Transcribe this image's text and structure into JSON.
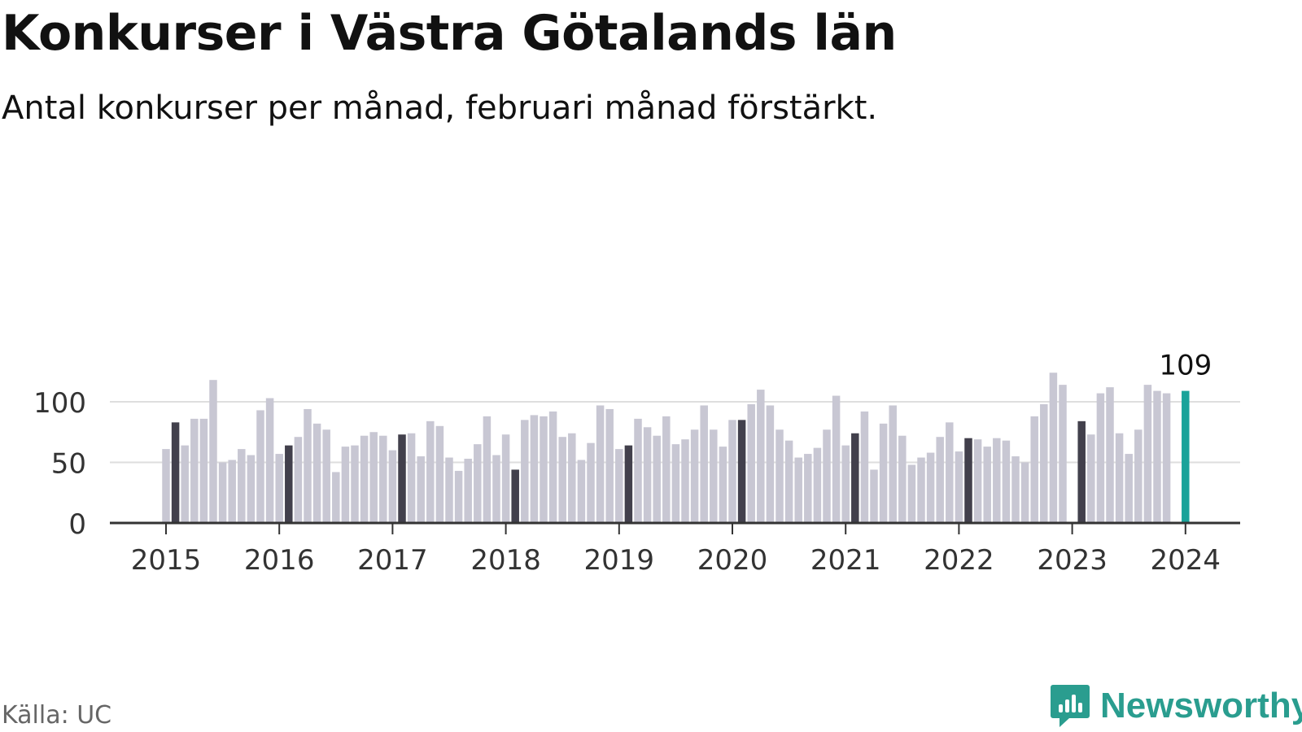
{
  "title": "Konkurser i Västra Götalands län",
  "subtitle": "Antal konkurser per månad, februari månad förstärkt.",
  "source": "Källa: UC",
  "brand": {
    "name": "Newsworthy",
    "icon": "newsworthy-logo-icon"
  },
  "colors": {
    "bar": "#c8c7d3",
    "highlight": "#42404c",
    "latest": "#1aa39a",
    "grid": "#dedede",
    "axis": "#333333"
  },
  "chart_data": {
    "type": "bar",
    "xlabel": "",
    "ylabel": "",
    "ylim": [
      0,
      125
    ],
    "yticks": [
      0,
      50,
      100
    ],
    "grid": true,
    "x_start": "2015-01",
    "year_labels": [
      "2015",
      "2016",
      "2017",
      "2018",
      "2019",
      "2020",
      "2021",
      "2022",
      "2023",
      "2024"
    ],
    "highlight_month": "februari",
    "values": [
      61,
      83,
      64,
      86,
      86,
      118,
      50,
      52,
      61,
      56,
      93,
      103,
      57,
      64,
      71,
      94,
      82,
      77,
      42,
      63,
      64,
      72,
      75,
      72,
      60,
      73,
      74,
      55,
      84,
      80,
      54,
      43,
      53,
      65,
      88,
      56,
      73,
      44,
      85,
      89,
      88,
      92,
      71,
      74,
      52,
      66,
      97,
      94,
      61,
      64,
      86,
      79,
      72,
      88,
      65,
      69,
      77,
      97,
      77,
      63,
      85,
      85,
      98,
      110,
      97,
      77,
      68,
      54,
      57,
      62,
      77,
      105,
      64,
      74,
      92,
      44,
      82,
      97,
      72,
      48,
      54,
      58,
      71,
      83,
      59,
      70,
      69,
      63,
      70,
      68,
      55,
      50,
      88,
      98,
      124,
      114,
      null,
      84,
      73,
      107,
      112,
      74,
      57,
      77,
      114,
      109,
      107,
      null,
      109
    ],
    "last_value_label": "109"
  }
}
